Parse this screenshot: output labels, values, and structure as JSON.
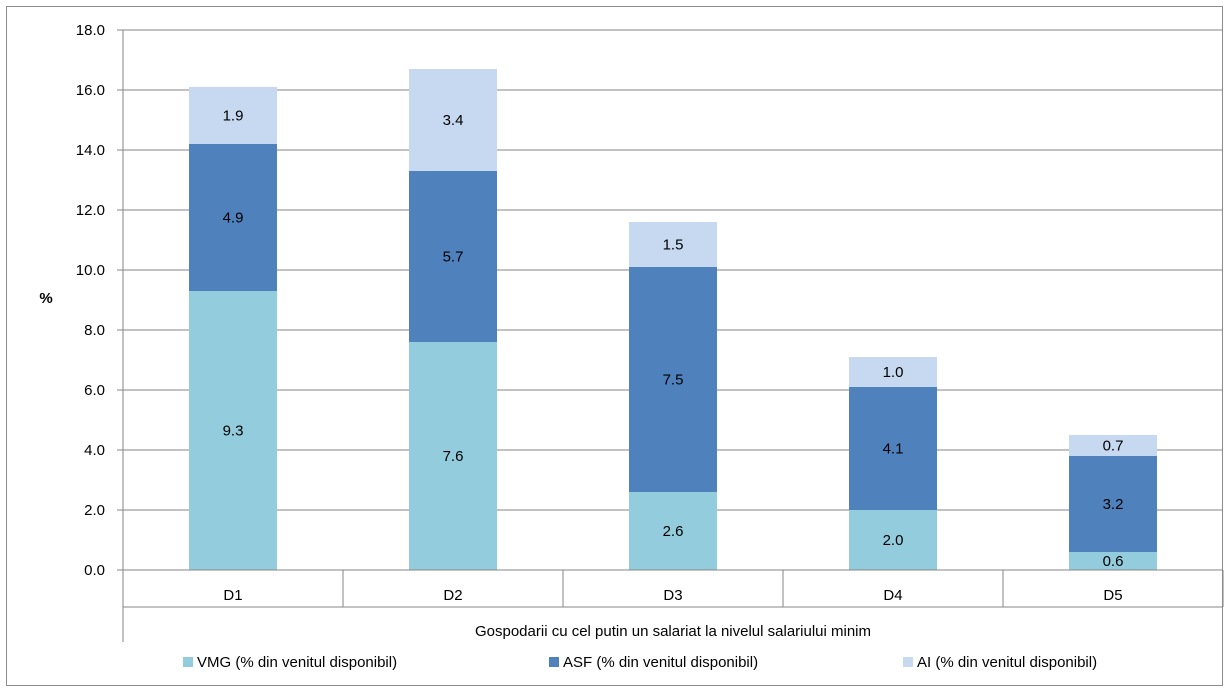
{
  "chart_data": {
    "type": "bar",
    "stacked": true,
    "categories": [
      "D1",
      "D2",
      "D3",
      "D4",
      "D5"
    ],
    "series": [
      {
        "name": "VMG (% din venitul disponibil)",
        "values": [
          9.3,
          7.6,
          2.6,
          2.0,
          0.6
        ],
        "labels": [
          "9.3",
          "7.6",
          "2.6",
          "2.0",
          "0.6"
        ],
        "color": "#93cddd"
      },
      {
        "name": "ASF (% din venitul disponibil)",
        "values": [
          4.9,
          5.7,
          7.5,
          4.1,
          3.2
        ],
        "labels": [
          "4.9",
          "5.7",
          "7.5",
          "4.1",
          "3.2"
        ],
        "color": "#4f81bd"
      },
      {
        "name": "AI (% din venitul disponibil)",
        "values": [
          1.9,
          3.4,
          1.5,
          1.0,
          0.7
        ],
        "labels": [
          "1.9",
          "3.4",
          "1.5",
          "1.0",
          "0.7"
        ],
        "color": "#c6d9f1"
      }
    ],
    "ylabel": "%",
    "xlabel": "Gospodarii cu cel putin un salariat la nivelul salariului minim",
    "ylim": [
      0,
      18
    ],
    "yticks": [
      "0.0",
      "2.0",
      "4.0",
      "6.0",
      "8.0",
      "10.0",
      "12.0",
      "14.0",
      "16.0",
      "18.0"
    ],
    "grid": true,
    "legend_position": "bottom"
  }
}
